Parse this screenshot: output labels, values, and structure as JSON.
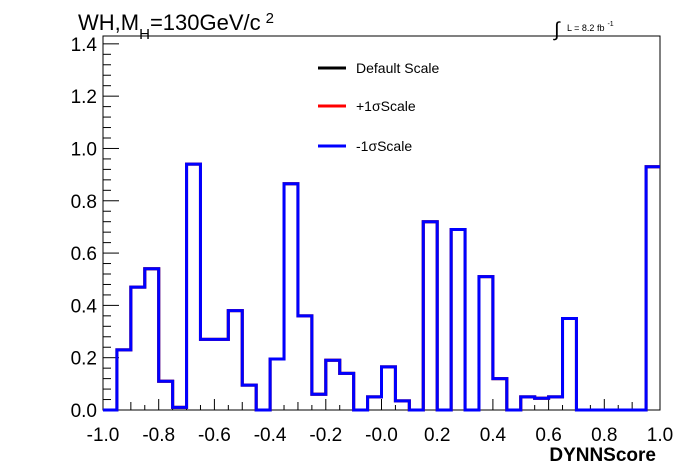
{
  "header": {
    "title_main": "WH,M",
    "title_sub": "H",
    "title_rest": "=130GeV/c",
    "title_sup": "2",
    "lumi_integral": "∫",
    "lumi_text": "L = 8.2 fb",
    "lumi_sup": "-1"
  },
  "chart_data": {
    "type": "histogram",
    "xlabel": "DYNNScore",
    "ylabel": "",
    "xlim": [
      -1.0,
      1.0
    ],
    "ylim": [
      0.0,
      1.43
    ],
    "x_ticks": [
      -1.0,
      -0.8,
      -0.6,
      -0.4,
      -0.2,
      0.0,
      0.2,
      0.4,
      0.6,
      0.8,
      1.0
    ],
    "x_tick_labels": [
      "-1.0",
      "-0.8",
      "-0.6",
      "-0.4",
      "-0.2",
      "-0.0",
      "0.2",
      "0.4",
      "0.6",
      "0.8",
      "1.0"
    ],
    "y_ticks": [
      0.0,
      0.2,
      0.4,
      0.6,
      0.8,
      1.0,
      1.2,
      1.4
    ],
    "y_tick_labels": [
      "0.0",
      "0.2",
      "0.4",
      "0.6",
      "0.8",
      "1.0",
      "1.2",
      "1.4"
    ],
    "bin_edges": [
      -1.0,
      -0.95,
      -0.9,
      -0.85,
      -0.8,
      -0.75,
      -0.7,
      -0.65,
      -0.6,
      -0.55,
      -0.5,
      -0.45,
      -0.4,
      -0.35,
      -0.3,
      -0.25,
      -0.2,
      -0.15,
      -0.1,
      -0.05,
      0.0,
      0.05,
      0.1,
      0.15,
      0.2,
      0.25,
      0.3,
      0.35,
      0.4,
      0.45,
      0.5,
      0.55,
      0.6,
      0.65,
      0.7,
      0.75,
      0.8,
      0.85,
      0.9,
      0.95,
      1.0
    ],
    "legend_position": "top-center",
    "series": [
      {
        "name": "Default Scale",
        "color": "#000000",
        "values": [
          0.0,
          0.23,
          0.47,
          0.54,
          0.11,
          0.01,
          0.94,
          0.27,
          0.27,
          0.38,
          0.095,
          0.0,
          0.195,
          0.865,
          0.36,
          0.06,
          0.19,
          0.14,
          0.0,
          0.05,
          0.165,
          0.035,
          0.0,
          0.72,
          0.0,
          0.69,
          0.0,
          0.51,
          0.12,
          0.0,
          0.05,
          0.045,
          0.05,
          0.35,
          0.0,
          0.0,
          0.0,
          0.0,
          0.0,
          0.93
        ]
      },
      {
        "name": "+1σScale",
        "color": "#ff0000",
        "values": [
          0.0,
          0.23,
          0.47,
          0.54,
          0.11,
          0.01,
          0.94,
          0.27,
          0.27,
          0.38,
          0.095,
          0.0,
          0.195,
          0.865,
          0.36,
          0.06,
          0.19,
          0.14,
          0.0,
          0.05,
          0.165,
          0.035,
          0.0,
          0.72,
          0.0,
          0.69,
          0.0,
          0.51,
          0.12,
          0.0,
          0.05,
          0.045,
          0.05,
          0.35,
          0.0,
          0.0,
          0.0,
          0.0,
          0.0,
          0.93
        ]
      },
      {
        "name": "-1σScale",
        "color": "#0000ff",
        "values": [
          0.0,
          0.23,
          0.47,
          0.54,
          0.11,
          0.01,
          0.94,
          0.27,
          0.27,
          0.38,
          0.095,
          0.0,
          0.195,
          0.865,
          0.36,
          0.06,
          0.19,
          0.14,
          0.0,
          0.05,
          0.165,
          0.035,
          0.0,
          0.72,
          0.0,
          0.69,
          0.0,
          0.51,
          0.12,
          0.0,
          0.05,
          0.045,
          0.05,
          0.35,
          0.0,
          0.0,
          0.0,
          0.0,
          0.0,
          0.93
        ]
      }
    ]
  }
}
